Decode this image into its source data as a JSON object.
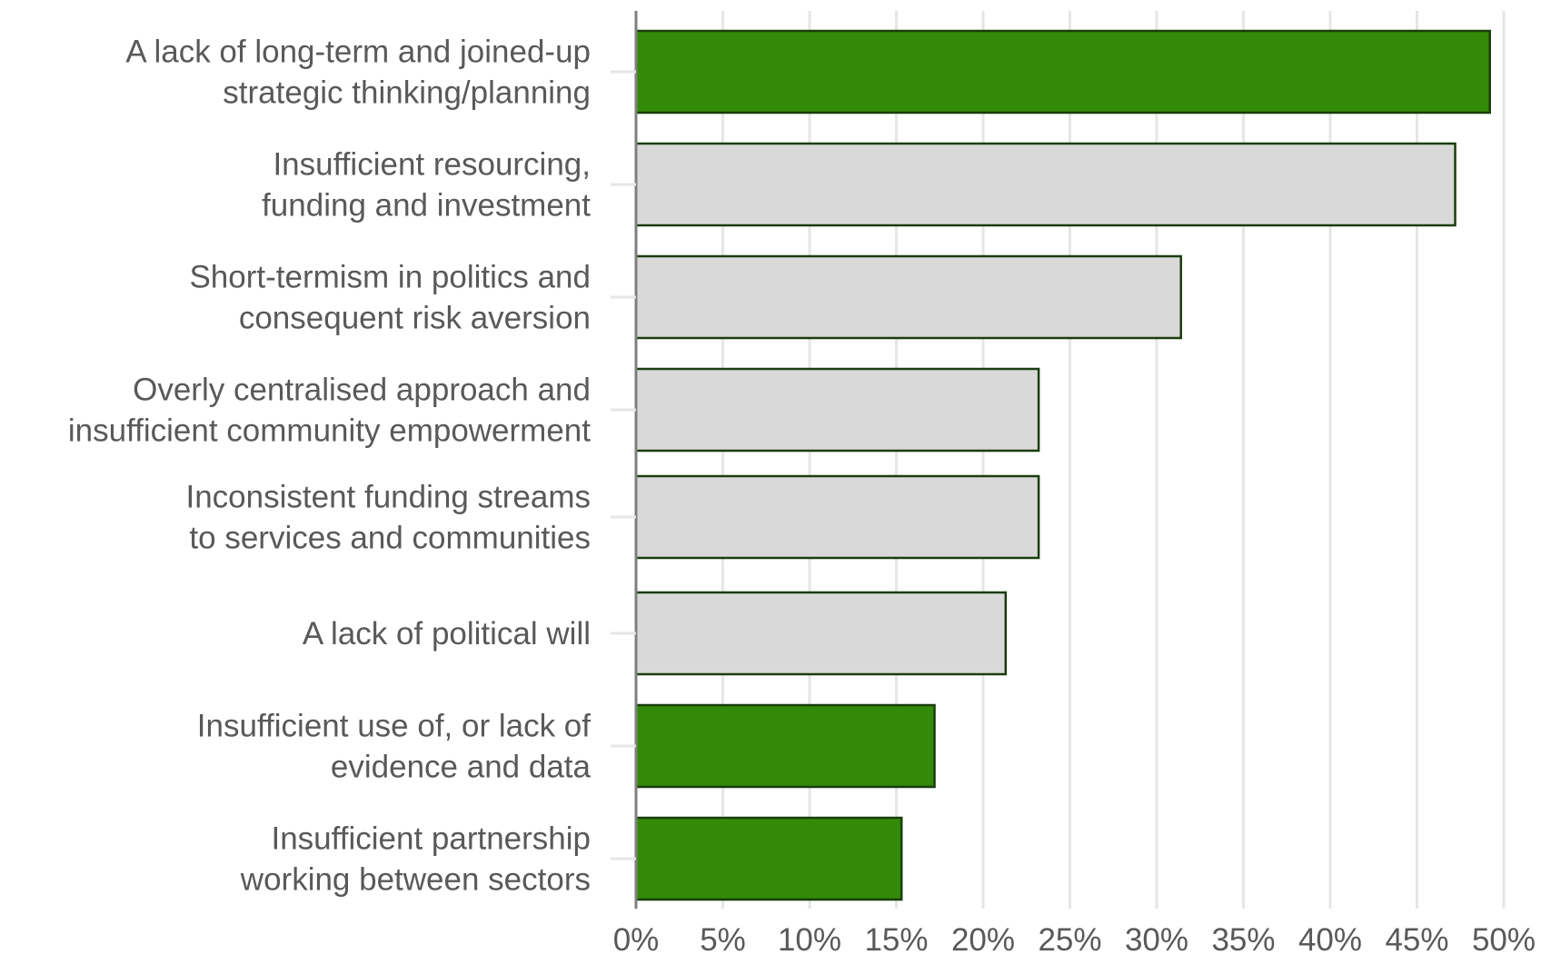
{
  "chart_data": {
    "type": "bar",
    "orientation": "horizontal",
    "categories": [
      [
        "A lack of long-term and joined-up",
        "strategic thinking/planning"
      ],
      [
        "Insufficient resourcing,",
        "funding and investment"
      ],
      [
        "Short-termism in politics and",
        "consequent risk aversion"
      ],
      [
        "Overly centralised approach and",
        "insufficient community empowerment"
      ],
      [
        "Inconsistent funding streams",
        "to services and communities"
      ],
      [
        "A lack of political will"
      ],
      [
        "Insufficient use of, or lack of",
        "evidence and data"
      ],
      [
        "Insufficient partnership",
        "working between sectors"
      ]
    ],
    "values": [
      49.2,
      47.2,
      31.4,
      23.2,
      23.2,
      21.3,
      17.2,
      15.3
    ],
    "highlighted": [
      true,
      false,
      false,
      false,
      false,
      false,
      true,
      true
    ],
    "xlim": [
      0,
      50
    ],
    "xticks": [
      0,
      5,
      10,
      15,
      20,
      25,
      30,
      35,
      40,
      45,
      50
    ],
    "xtick_labels": [
      "0%",
      "5%",
      "10%",
      "15%",
      "20%",
      "25%",
      "30%",
      "35%",
      "40%",
      "45%",
      "50%"
    ],
    "title": "",
    "xlabel": "",
    "ylabel": "",
    "grid": "vertical",
    "legend": "none"
  },
  "colors": {
    "highlight": "#338a08",
    "default": "#d9d9d9",
    "bar_border": "#1a3d0c",
    "grid": "#e6e6e6",
    "axis": "#7f7f7f",
    "text": "#595959"
  }
}
